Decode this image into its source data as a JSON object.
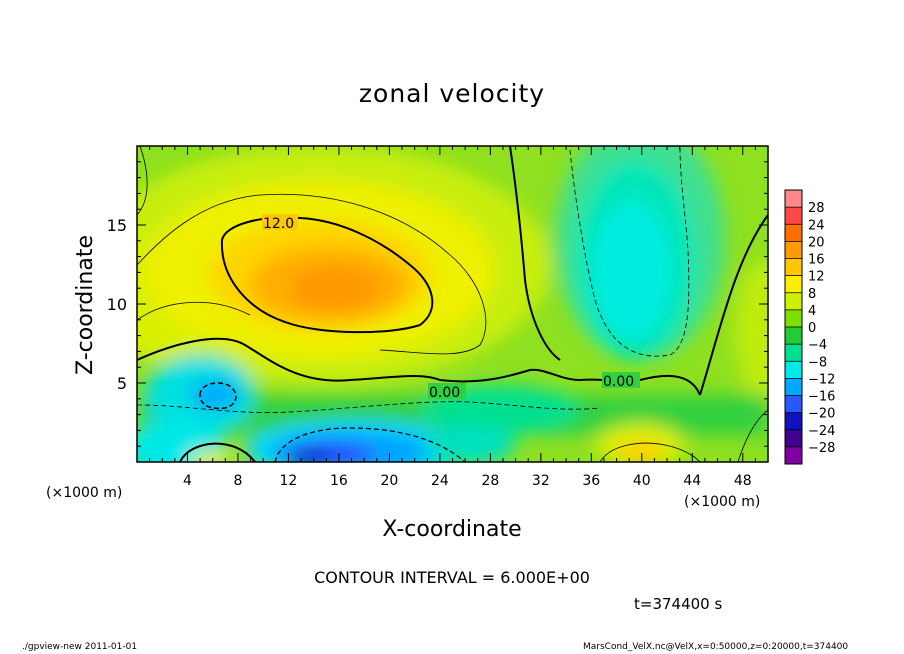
{
  "chart_data": {
    "type": "heatmap",
    "title": "zonal velocity",
    "xlabel": "X-coordinate",
    "ylabel": "Z-coordinate",
    "x_unit_left": "(×1000 m)",
    "x_unit_right": "(×1000 m)",
    "xlim": [
      0,
      50
    ],
    "ylim": [
      0,
      20
    ],
    "x_ticks": [
      4,
      8,
      12,
      16,
      20,
      24,
      28,
      32,
      36,
      40,
      44,
      48
    ],
    "y_ticks": [
      5,
      10,
      15
    ],
    "contour_labels": [
      {
        "text": "12.0",
        "x": 11.5,
        "y": 15.0
      },
      {
        "text": "0.00",
        "x": 24.8,
        "y": 4.3
      },
      {
        "text": "0.00",
        "x": 38.0,
        "y": 5.0
      }
    ],
    "colorbar": {
      "labels": [
        "28",
        "24",
        "20",
        "16",
        "12",
        "8",
        "4",
        "0",
        "−4",
        "−8",
        "−12",
        "−16",
        "−20",
        "−24",
        "−28"
      ],
      "colors": [
        "#ff8888",
        "#ff4848",
        "#ff7000",
        "#ff9a00",
        "#ffc800",
        "#ffee00",
        "#cdf000",
        "#7ee000",
        "#22cc33",
        "#00e090",
        "#00e8e8",
        "#00a8ff",
        "#2a58ff",
        "#1111c0",
        "#400090",
        "#8000a0"
      ]
    },
    "contour_interval": "CONTOUR INTERVAL = 6.000E+00",
    "time_label": "t=374400 s"
  },
  "footer": {
    "left": "./gpview-new  2011-01-01",
    "right": "MarsCond_VelX.nc@VelX,x=0:50000,z=0:20000,t=374400"
  }
}
